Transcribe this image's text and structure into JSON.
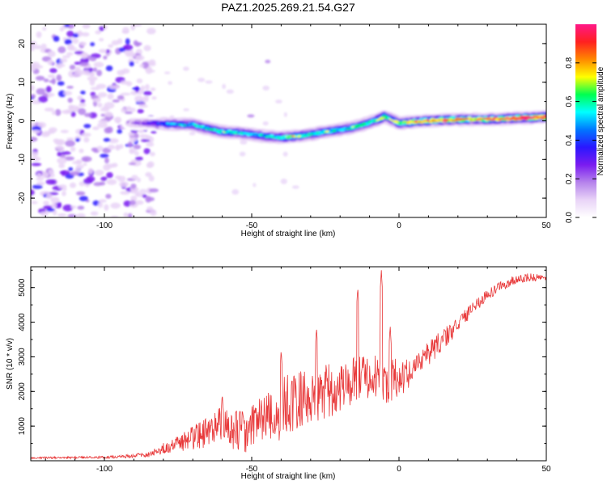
{
  "figure": {
    "title": "PAZ1.2025.269.21.54.G27"
  },
  "colors": {
    "snr_line": "#e8393a",
    "background": "#ffffff",
    "axis": "#000000"
  },
  "chart_data": [
    {
      "type": "heatmap",
      "title": "PAZ1.2025.269.21.54.G27",
      "xlabel": "Height of straight line (km)",
      "ylabel": "Frequency (Hz)",
      "xlim": [
        -125,
        50
      ],
      "ylim": [
        -25,
        25
      ],
      "xticks": [
        -100,
        -50,
        0,
        50
      ],
      "yticks": [
        -20,
        -10,
        0,
        10,
        20
      ],
      "colorbar": {
        "label": "Normalized spectral amplitude",
        "range": [
          0,
          1
        ],
        "ticks": [
          "0.0",
          "0.2",
          "0.4",
          "0.6",
          "0.8"
        ],
        "colormap": [
          "#ffffff",
          "#e9d4f7",
          "#b582ec",
          "#7a1bf0",
          "#2a17ff",
          "#0077ff",
          "#00ffff",
          "#00ff50",
          "#ffff00",
          "#ff8800",
          "#ff2020",
          "#ff1888"
        ]
      },
      "ridge": {
        "description_free": true,
        "height_km": [
          -92,
          -85,
          -80,
          -75,
          -70,
          -65,
          -60,
          -55,
          -50,
          -45,
          -40,
          -35,
          -30,
          -25,
          -20,
          -15,
          -10,
          -7,
          -5,
          -3,
          0,
          5,
          10,
          15,
          20,
          25,
          30,
          35,
          40,
          45,
          50
        ],
        "freq_hz": [
          -0.5,
          -0.6,
          -0.8,
          -0.9,
          -1.0,
          -2.0,
          -2.8,
          -3.0,
          -3.5,
          -4.0,
          -4.3,
          -4.0,
          -3.5,
          -2.8,
          -2.3,
          -1.6,
          -0.4,
          0.3,
          1.2,
          0.5,
          -0.6,
          -0.3,
          0.0,
          0.2,
          0.3,
          0.4,
          0.4,
          0.5,
          0.7,
          0.8,
          1.0
        ],
        "amplitude": [
          0.15,
          0.3,
          0.45,
          0.5,
          0.55,
          0.55,
          0.6,
          0.6,
          0.55,
          0.55,
          0.65,
          0.7,
          0.6,
          0.6,
          0.55,
          0.6,
          0.6,
          0.65,
          0.7,
          0.65,
          0.7,
          0.85,
          0.8,
          0.85,
          0.8,
          0.8,
          0.85,
          0.85,
          0.9,
          0.95,
          0.95
        ]
      },
      "noise_region_km": [
        -125,
        -83
      ]
    },
    {
      "type": "line",
      "xlabel": "Height of straight line (km)",
      "ylabel": "SNR (10 * v/v)",
      "xlim": [
        -125,
        50
      ],
      "ylim": [
        0,
        5600
      ],
      "xticks": [
        -100,
        -50,
        0,
        50
      ],
      "yticks": [
        1000,
        2000,
        3000,
        4000,
        5000
      ],
      "envelope": {
        "height_km": [
          -125,
          -110,
          -95,
          -85,
          -80,
          -75,
          -70,
          -65,
          -60,
          -55,
          -50,
          -45,
          -40,
          -35,
          -30,
          -25,
          -20,
          -15,
          -10,
          -5,
          0,
          5,
          10,
          15,
          20,
          25,
          30,
          35,
          40,
          45,
          50
        ],
        "snr_mean": [
          80,
          90,
          110,
          180,
          350,
          500,
          650,
          850,
          1100,
          850,
          900,
          1150,
          1500,
          1750,
          1900,
          2000,
          2100,
          2300,
          2500,
          2300,
          2400,
          2600,
          3100,
          3500,
          3900,
          4400,
          4800,
          5050,
          5250,
          5300,
          5250
        ],
        "snr_spread": [
          30,
          30,
          40,
          80,
          160,
          250,
          350,
          450,
          500,
          600,
          700,
          800,
          900,
          900,
          800,
          800,
          700,
          700,
          700,
          700,
          550,
          400,
          350,
          300,
          250,
          200,
          150,
          150,
          120,
          120,
          120
        ]
      },
      "peaks": [
        {
          "height_km": -60,
          "snr": 1950
        },
        {
          "height_km": -40,
          "snr": 3200
        },
        {
          "height_km": -28,
          "snr": 3850
        },
        {
          "height_km": -14,
          "snr": 5000
        },
        {
          "height_km": -6,
          "snr": 5500
        },
        {
          "height_km": -3,
          "snr": 3900
        }
      ]
    }
  ]
}
